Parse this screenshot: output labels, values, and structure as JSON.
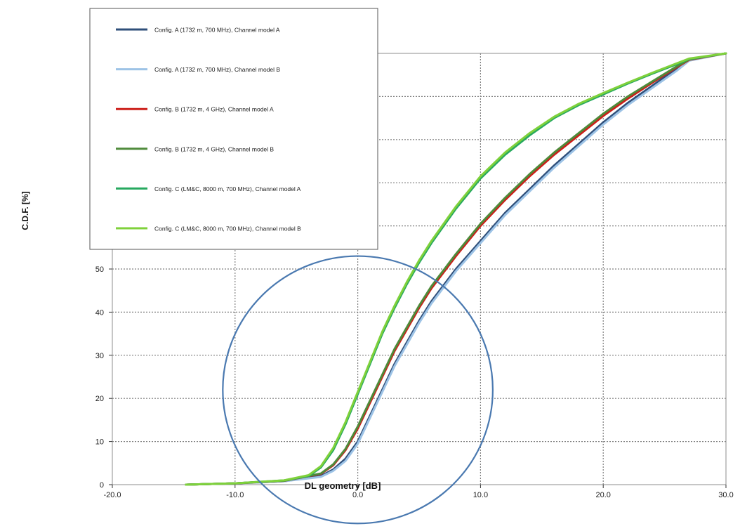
{
  "chart_data": {
    "type": "line",
    "title": "",
    "xlabel": "DL geometry [dB]",
    "ylabel": "C.D.F. [%]",
    "xlim": [
      -20,
      30
    ],
    "ylim": [
      0,
      100
    ],
    "x_ticks": [
      -20,
      -10,
      0,
      10,
      20,
      30
    ],
    "x_tick_labels": [
      "-20.0",
      "-10.0",
      "0.0",
      "10.0",
      "20.0",
      "30.0"
    ],
    "y_ticks": [
      0,
      10,
      20,
      30,
      40,
      50,
      60,
      70,
      80,
      90,
      100
    ],
    "y_tick_labels": [
      "0",
      "10",
      "20",
      "30",
      "40",
      "50",
      "",
      "",
      "",
      "",
      ""
    ],
    "grid": true,
    "legend_position": "top-left",
    "series": [
      {
        "name": "Config. A (1732 m, 700 MHz), Channel model A",
        "color": "#2f4f7a",
        "x": [
          -14,
          -10,
          -6,
          -3,
          -2,
          -1,
          0,
          1,
          2,
          3,
          4,
          5,
          6,
          8,
          10,
          12,
          14,
          16,
          18,
          20,
          22,
          24,
          26,
          27,
          30
        ],
        "y": [
          0,
          0.3,
          0.8,
          2,
          3.5,
          6,
          10,
          16,
          22,
          28,
          33,
          38,
          42.5,
          50,
          56.5,
          63,
          68.5,
          74,
          79,
          84,
          88.5,
          92.5,
          96.5,
          98.5,
          100
        ]
      },
      {
        "name": "Config. A (1732 m, 700 MHz), Channel model B",
        "color": "#9dc3e6",
        "x": [
          -14,
          -10,
          -6,
          -3,
          -2,
          -1,
          0,
          1,
          2,
          3,
          4,
          5,
          6,
          8,
          10,
          12,
          14,
          16,
          18,
          20,
          22,
          24,
          26,
          27,
          30
        ],
        "y": [
          0,
          0.3,
          0.8,
          1.8,
          3.2,
          5.5,
          9.5,
          15.5,
          21.5,
          27.5,
          32.5,
          37.5,
          42,
          49.5,
          56,
          62.5,
          68,
          73.5,
          78.5,
          83.5,
          88,
          92,
          96,
          98.3,
          100
        ]
      },
      {
        "name": "Config. B (1732 m, 4 GHz), Channel model A",
        "color": "#cc1f1a",
        "x": [
          -14,
          -10,
          -6,
          -3,
          -2,
          -1,
          0,
          1,
          2,
          3,
          4,
          5,
          6,
          8,
          10,
          12,
          14,
          16,
          18,
          20,
          22,
          24,
          26,
          27,
          30
        ],
        "y": [
          0,
          0.3,
          0.9,
          2.5,
          4.5,
          8,
          13,
          19,
          25,
          31,
          36,
          41,
          45.5,
          53,
          60,
          66,
          71.5,
          76.5,
          81,
          85.5,
          89.5,
          93.2,
          96.8,
          98.5,
          100
        ]
      },
      {
        "name": "Config. B (1732 m, 4 GHz), Channel model B",
        "color": "#4e8a3a",
        "x": [
          -14,
          -10,
          -6,
          -3,
          -2,
          -1,
          0,
          1,
          2,
          3,
          4,
          5,
          6,
          8,
          10,
          12,
          14,
          16,
          18,
          20,
          22,
          24,
          26,
          27,
          30
        ],
        "y": [
          0,
          0.3,
          0.9,
          2.6,
          4.7,
          8.3,
          13.5,
          19.5,
          25.5,
          31.5,
          36.5,
          41.5,
          46,
          53.5,
          60.5,
          66.5,
          72,
          77,
          81.5,
          86,
          90,
          93.5,
          97,
          98.6,
          100
        ]
      },
      {
        "name": "Config. C (LM&C, 8000 m, 700 MHz), Channel model A",
        "color": "#27a95f",
        "x": [
          -14,
          -10,
          -6,
          -4,
          -3,
          -2,
          -1,
          0,
          1,
          2,
          3,
          4,
          5,
          6,
          8,
          10,
          12,
          14,
          16,
          18,
          20,
          22,
          24,
          26,
          27,
          30
        ],
        "y": [
          0,
          0.3,
          1,
          2,
          4,
          8,
          14,
          21,
          28,
          35,
          41,
          46.5,
          51.5,
          56,
          64,
          71,
          76.5,
          81,
          85,
          88,
          90.5,
          93,
          95.3,
          97.5,
          98.7,
          100
        ]
      },
      {
        "name": "Config. C (LM&C, 8000 m, 700 MHz), Channel model B",
        "color": "#7fd13b",
        "x": [
          -14,
          -10,
          -6,
          -4,
          -3,
          -2,
          -1,
          0,
          1,
          2,
          3,
          4,
          5,
          6,
          8,
          10,
          12,
          14,
          16,
          18,
          20,
          22,
          24,
          26,
          27,
          30
        ],
        "y": [
          0,
          0.3,
          1,
          2.2,
          4.3,
          8.5,
          14.5,
          21.5,
          28.5,
          35.5,
          41.5,
          47,
          52,
          56.5,
          64.5,
          71.5,
          77,
          81.5,
          85.3,
          88.3,
          90.8,
          93.2,
          95.5,
          97.7,
          98.8,
          100
        ]
      }
    ],
    "annotations": [
      {
        "type": "circle",
        "center_x": 0,
        "center_y": 22,
        "radius_x": 11,
        "radius_y": 31,
        "color": "#4a79b0"
      }
    ]
  }
}
